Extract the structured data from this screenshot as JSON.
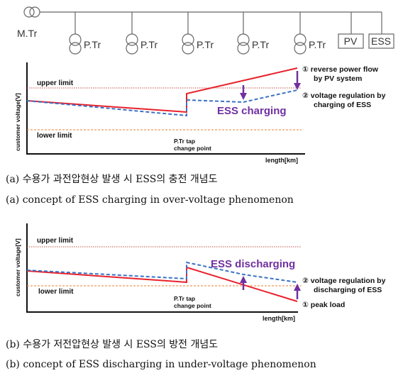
{
  "feeder": {
    "main_tr": "M.Tr",
    "pole_tr": "P.Tr",
    "pv": "PV",
    "ess": "ESS"
  },
  "diagram_a": {
    "y_axis": "customer voltage[V]",
    "x_axis": "length[km]",
    "upper_limit": "upper limit",
    "lower_limit": "lower limit",
    "tap_point_line1": "P.Tr tap",
    "tap_point_line2": "change point",
    "mode_label": "ESS charging",
    "note1_line1": "① reverse power flow",
    "note1_line2": "by PV system",
    "note2_line1": "② voltage regulation by",
    "note2_line2": "charging of ESS"
  },
  "caption_a_kr": "(a) 수용가 과전압현상 발생 시 ESS의 충전 개념도",
  "caption_a_en": "(a) concept of ESS charging in over-voltage phenomenon",
  "diagram_b": {
    "y_axis": "customer voltage[V]",
    "x_axis": "length[km]",
    "upper_limit": "upper limit",
    "lower_limit": "lower limit",
    "tap_point_line1": "P.Tr tap",
    "tap_point_line2": "change point",
    "mode_label": "ESS discharging",
    "note2_line1": "② voltage regulation by",
    "note2_line2": "discharging of ESS",
    "note1": "① peak load"
  },
  "caption_b_kr": "(b) 수용가 저전압현상 발생 시 ESS의 방전 개념도",
  "caption_b_en": "(b) concept of ESS discharging in under-voltage phenomenon",
  "colors": {
    "red_line": "#e8212b",
    "blue_line": "#3a72c4",
    "purple": "#7030a0",
    "upper_limit_line": "#c0504d",
    "lower_limit_line": "#ed7d31"
  }
}
